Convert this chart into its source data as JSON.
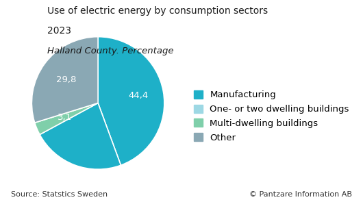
{
  "title_line1": "Use of electric energy by consumption sectors",
  "title_line2": "2023",
  "title_line3": "Halland County. Percentage",
  "labels": [
    "Manufacturing",
    "One- or two dwelling buildings",
    "Multi-dwelling buildings",
    "Other"
  ],
  "values": [
    44.4,
    22.7,
    3.1,
    29.8
  ],
  "label_values": [
    "44,4",
    "",
    "3,1",
    "29,8"
  ],
  "show_labels": [
    true,
    false,
    true,
    true
  ],
  "colors": [
    "#1eb0c8",
    "#1eb0c8",
    "#7fcfaa",
    "#8aa8b4"
  ],
  "legend_colors": [
    "#1eb0c8",
    "#9dd8e4",
    "#7fcfaa",
    "#8aa8b4"
  ],
  "source_text": "Source: Statstics Sweden",
  "copyright_text": "© Pantzare Information AB",
  "background_color": "#ffffff",
  "legend_fontsize": 9.5,
  "startangle": 90
}
